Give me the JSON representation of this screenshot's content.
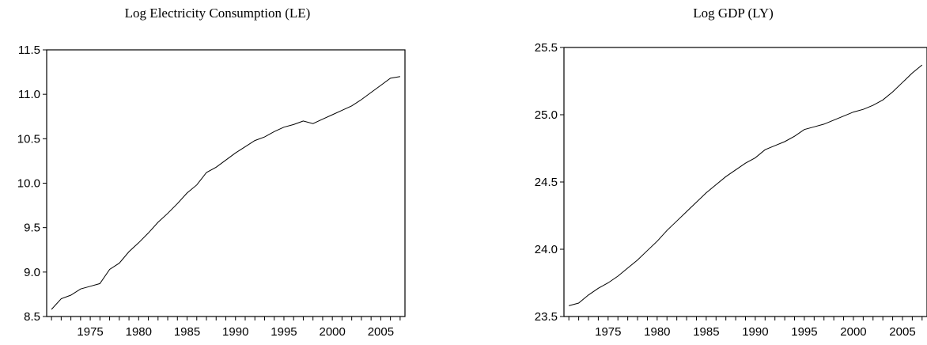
{
  "chart_data": [
    {
      "type": "line",
      "title": "Log Electricity Consumption (LE)",
      "xlabel": "",
      "ylabel": "",
      "xlim": [
        1970.5,
        2007.5
      ],
      "ylim": [
        8.5,
        11.5
      ],
      "y_ticks": [
        "8.5",
        "9.0",
        "9.5",
        "10.0",
        "10.5",
        "11.0",
        "11.5"
      ],
      "x_ticks": [
        "1975",
        "1980",
        "1985",
        "1990",
        "1995",
        "2000",
        "2005"
      ],
      "grid": false,
      "series": [
        {
          "x": [
            1971,
            1972,
            1973,
            1974,
            1975,
            1976,
            1977,
            1978,
            1979,
            1980,
            1981,
            1982,
            1983,
            1984,
            1985,
            1986,
            1987,
            1988,
            1989,
            1990,
            1991,
            1992,
            1993,
            1994,
            1995,
            1996,
            1997,
            1998,
            1999,
            2000,
            2001,
            2002,
            2003,
            2004,
            2005,
            2006,
            2007
          ],
          "values": [
            8.58,
            8.7,
            8.74,
            8.81,
            8.84,
            8.87,
            9.03,
            9.1,
            9.23,
            9.33,
            9.44,
            9.56,
            9.66,
            9.77,
            9.89,
            9.98,
            10.12,
            10.18,
            10.26,
            10.34,
            10.41,
            10.48,
            10.52,
            10.58,
            10.63,
            10.66,
            10.7,
            10.67,
            10.72,
            10.77,
            10.82,
            10.87,
            10.94,
            11.02,
            11.1,
            11.18,
            11.2
          ]
        }
      ]
    },
    {
      "type": "line",
      "title": "Log GDP (LY)",
      "xlabel": "",
      "ylabel": "",
      "xlim": [
        1970.5,
        2007.5
      ],
      "ylim": [
        23.5,
        25.5
      ],
      "y_ticks": [
        "23.5",
        "24.0",
        "24.5",
        "25.0",
        "25.5"
      ],
      "x_ticks": [
        "1975",
        "1980",
        "1985",
        "1990",
        "1995",
        "2000",
        "2005"
      ],
      "grid": false,
      "series": [
        {
          "x": [
            1971,
            1972,
            1973,
            1974,
            1975,
            1976,
            1977,
            1978,
            1979,
            1980,
            1981,
            1982,
            1983,
            1984,
            1985,
            1986,
            1987,
            1988,
            1989,
            1990,
            1991,
            1992,
            1993,
            1994,
            1995,
            1996,
            1997,
            1998,
            1999,
            2000,
            2001,
            2002,
            2003,
            2004,
            2005,
            2006,
            2007
          ],
          "values": [
            23.58,
            23.6,
            23.66,
            23.71,
            23.75,
            23.8,
            23.86,
            23.92,
            23.99,
            24.06,
            24.14,
            24.21,
            24.28,
            24.35,
            24.42,
            24.48,
            24.54,
            24.59,
            24.64,
            24.68,
            24.74,
            24.77,
            24.8,
            24.84,
            24.89,
            24.91,
            24.93,
            24.96,
            24.99,
            25.02,
            25.04,
            25.07,
            25.11,
            25.17,
            25.24,
            25.31,
            25.37
          ]
        }
      ]
    }
  ]
}
